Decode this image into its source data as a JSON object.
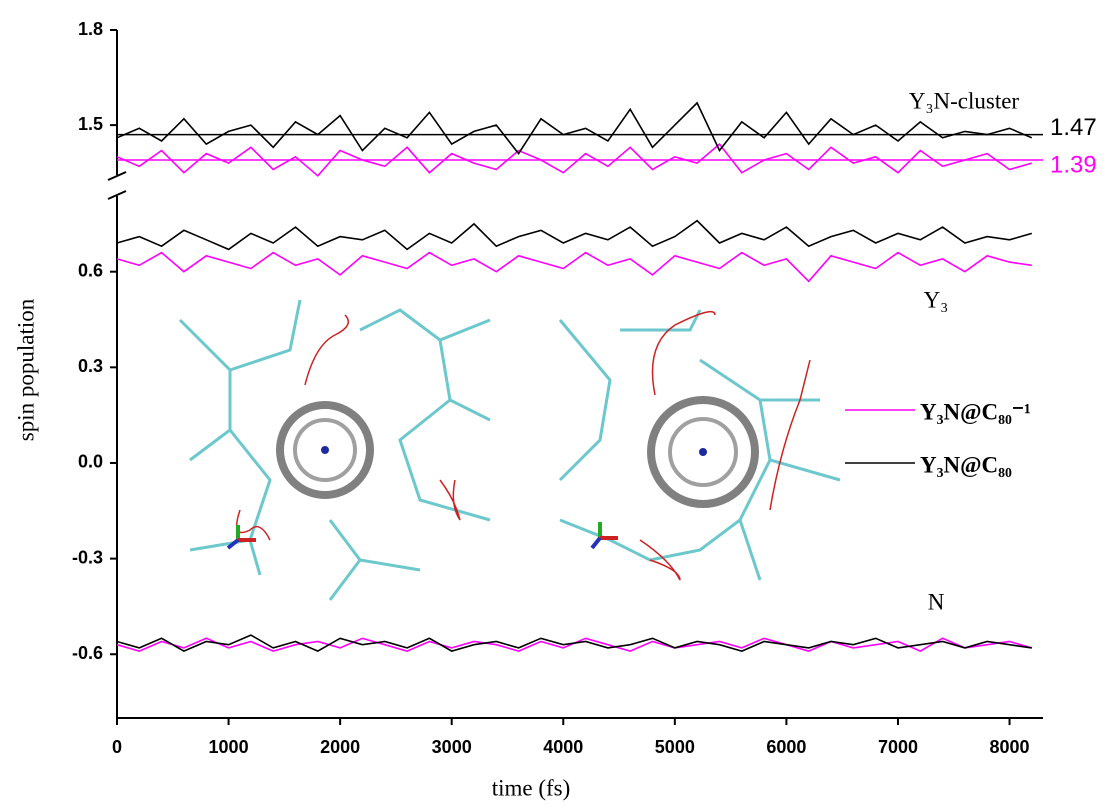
{
  "chart_data": {
    "type": "line",
    "xlabel": "time (fs)",
    "ylabel": "spin population",
    "xlim": [
      0,
      8300
    ],
    "xticks": [
      0,
      1000,
      2000,
      3000,
      4000,
      5000,
      6000,
      7000,
      8000
    ],
    "ylim": [
      -0.8,
      0.85
    ],
    "yticks": [
      -0.6,
      -0.3,
      {
        "value": 0,
        "label": "0.0"
      },
      0.3,
      0.6
    ],
    "ylim_upper": [
      1.33,
      1.8
    ],
    "yticks_upper": [
      1.5,
      1.8
    ],
    "x": [
      0,
      200,
      400,
      600,
      800,
      1000,
      1200,
      1400,
      1600,
      1800,
      2000,
      2200,
      2400,
      2600,
      2800,
      3000,
      3200,
      3400,
      3600,
      3800,
      4000,
      4200,
      4400,
      4600,
      4800,
      5000,
      5200,
      5400,
      5600,
      5800,
      6000,
      6200,
      6400,
      6600,
      6800,
      7000,
      7200,
      7400,
      7600,
      7800,
      8000,
      8200
    ],
    "series": [
      {
        "color": "#ff00ff",
        "axis": "upper",
        "values": [
          1.4,
          1.37,
          1.42,
          1.35,
          1.41,
          1.38,
          1.43,
          1.36,
          1.4,
          1.34,
          1.42,
          1.39,
          1.37,
          1.43,
          1.35,
          1.41,
          1.38,
          1.36,
          1.42,
          1.39,
          1.35,
          1.41,
          1.37,
          1.43,
          1.36,
          1.4,
          1.38,
          1.44,
          1.35,
          1.39,
          1.41,
          1.36,
          1.43,
          1.38,
          1.4,
          1.35,
          1.42,
          1.37,
          1.39,
          1.41,
          1.36,
          1.38
        ]
      },
      {
        "color": "#000000",
        "axis": "upper",
        "values": [
          1.46,
          1.49,
          1.45,
          1.52,
          1.44,
          1.48,
          1.5,
          1.43,
          1.51,
          1.47,
          1.53,
          1.42,
          1.49,
          1.46,
          1.54,
          1.44,
          1.48,
          1.5,
          1.41,
          1.52,
          1.47,
          1.49,
          1.45,
          1.55,
          1.43,
          1.5,
          1.57,
          1.42,
          1.51,
          1.46,
          1.54,
          1.44,
          1.52,
          1.47,
          1.5,
          1.45,
          1.51,
          1.46,
          1.48,
          1.47,
          1.49,
          1.46
        ]
      },
      {
        "color": "#ff00ff",
        "axis": "lower",
        "values": [
          0.64,
          0.62,
          0.66,
          0.6,
          0.65,
          0.63,
          0.61,
          0.66,
          0.62,
          0.64,
          0.59,
          0.65,
          0.63,
          0.61,
          0.66,
          0.62,
          0.64,
          0.6,
          0.65,
          0.63,
          0.61,
          0.66,
          0.62,
          0.64,
          0.59,
          0.65,
          0.63,
          0.61,
          0.66,
          0.62,
          0.64,
          0.57,
          0.65,
          0.63,
          0.61,
          0.66,
          0.62,
          0.64,
          0.6,
          0.65,
          0.63,
          0.62
        ]
      },
      {
        "color": "#000000",
        "axis": "lower",
        "values": [
          0.69,
          0.71,
          0.68,
          0.73,
          0.7,
          0.67,
          0.72,
          0.69,
          0.74,
          0.68,
          0.71,
          0.7,
          0.73,
          0.67,
          0.72,
          0.69,
          0.75,
          0.68,
          0.71,
          0.73,
          0.69,
          0.72,
          0.7,
          0.74,
          0.68,
          0.71,
          0.76,
          0.69,
          0.72,
          0.7,
          0.74,
          0.68,
          0.71,
          0.73,
          0.69,
          0.72,
          0.7,
          0.74,
          0.69,
          0.71,
          0.7,
          0.72
        ]
      },
      {
        "color": "#ff00ff",
        "axis": "lower",
        "values": [
          -0.57,
          -0.59,
          -0.56,
          -0.58,
          -0.55,
          -0.58,
          -0.56,
          -0.59,
          -0.57,
          -0.56,
          -0.58,
          -0.55,
          -0.57,
          -0.59,
          -0.56,
          -0.58,
          -0.56,
          -0.57,
          -0.59,
          -0.56,
          -0.58,
          -0.55,
          -0.57,
          -0.59,
          -0.56,
          -0.58,
          -0.57,
          -0.56,
          -0.58,
          -0.55,
          -0.57,
          -0.59,
          -0.56,
          -0.58,
          -0.57,
          -0.56,
          -0.59,
          -0.55,
          -0.58,
          -0.57,
          -0.56,
          -0.58
        ]
      },
      {
        "color": "#000000",
        "axis": "lower",
        "values": [
          -0.56,
          -0.58,
          -0.55,
          -0.59,
          -0.56,
          -0.57,
          -0.54,
          -0.58,
          -0.56,
          -0.59,
          -0.55,
          -0.57,
          -0.56,
          -0.58,
          -0.55,
          -0.59,
          -0.57,
          -0.56,
          -0.58,
          -0.55,
          -0.57,
          -0.56,
          -0.58,
          -0.57,
          -0.55,
          -0.58,
          -0.56,
          -0.57,
          -0.59,
          -0.56,
          -0.57,
          -0.58,
          -0.56,
          -0.57,
          -0.55,
          -0.58,
          -0.57,
          -0.56,
          -0.58,
          -0.56,
          -0.57,
          -0.58
        ]
      }
    ],
    "mean_lines": [
      {
        "value": 1.47,
        "color": "#000000"
      },
      {
        "value": 1.39,
        "color": "#ff00ff"
      }
    ],
    "annotations": [
      {
        "text": "Y₃N-cluster"
      },
      {
        "text": "Y₃"
      },
      {
        "text": "N"
      }
    ],
    "legend": [
      {
        "name": "Y₃N@C₈₀⁻¹",
        "color": "#ff00ff"
      },
      {
        "name": "Y₃N@C₈₀",
        "color": "#000000"
      }
    ]
  }
}
